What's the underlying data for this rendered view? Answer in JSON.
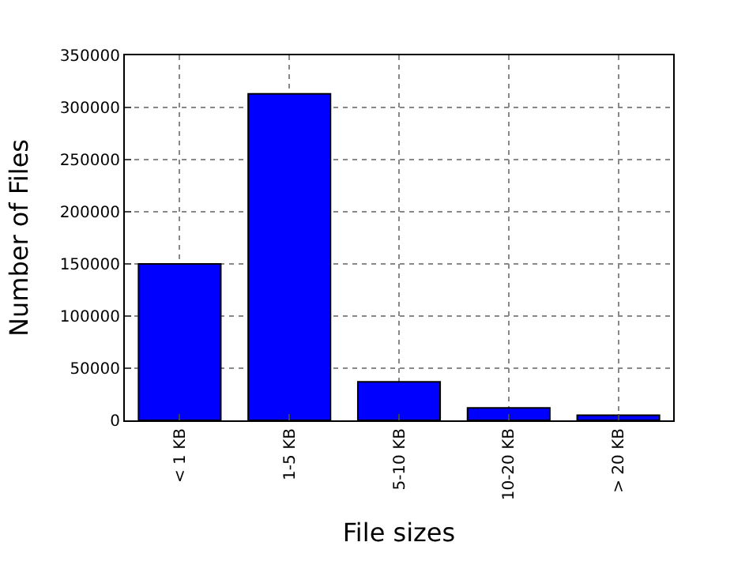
{
  "chart_data": {
    "type": "bar",
    "xlabel": "File sizes",
    "ylabel": "Number of Files",
    "categories": [
      "< 1 KB",
      "1-5 KB",
      "5-10 KB",
      "10-20 KB",
      "> 20 KB"
    ],
    "values": [
      150000,
      313000,
      37000,
      12000,
      5000
    ],
    "color": "#0000ff",
    "ylim": [
      0,
      350000
    ],
    "yticks": [
      0,
      50000,
      100000,
      150000,
      200000,
      250000,
      300000,
      350000
    ],
    "grid": true
  }
}
